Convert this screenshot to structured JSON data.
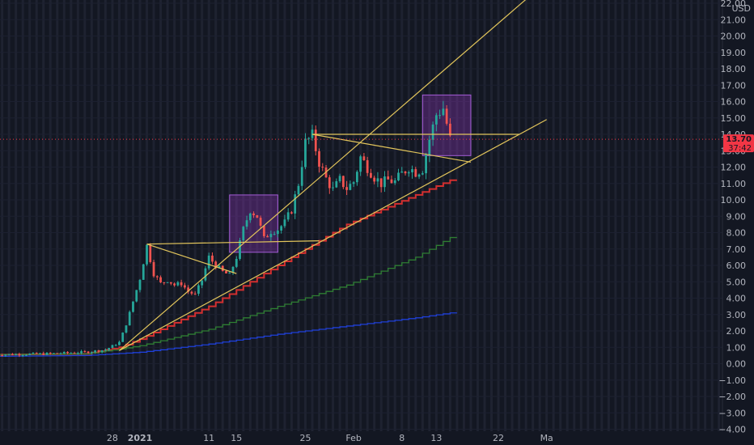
{
  "chart_data": {
    "type": "candlestick",
    "currency": "USD",
    "y_ticks": [
      -4,
      -3,
      -2,
      -1,
      0,
      1,
      2,
      3,
      4,
      5,
      6,
      7,
      8,
      9,
      10,
      11,
      12,
      13,
      14,
      15,
      16,
      17,
      18,
      19,
      20,
      21,
      22
    ],
    "y_tick_labels": [
      "−4.00",
      "−3.00",
      "−2.00",
      "−1.00",
      "0.00",
      "1.00",
      "2.00",
      "3.00",
      "4.00",
      "5.00",
      "6.00",
      "7.00",
      "8.00",
      "9.00",
      "10.00",
      "11.00",
      "12.00",
      "13.00",
      "14.00",
      "15.00",
      "16.00",
      "17.00",
      "18.00",
      "19.00",
      "20.00",
      "21.00",
      "22.00"
    ],
    "ylim": [
      -4,
      22
    ],
    "x_ticks": [
      {
        "label": "28",
        "day": -4
      },
      {
        "label": "2021",
        "day": 0
      },
      {
        "label": "11",
        "day": 10
      },
      {
        "label": "15",
        "day": 14
      },
      {
        "label": "25",
        "day": 24
      },
      {
        "label": "Feb",
        "day": 31
      },
      {
        "label": "8",
        "day": 38
      },
      {
        "label": "13",
        "day": 43
      },
      {
        "label": "22",
        "day": 52
      },
      {
        "label": "Ma",
        "day": 59
      }
    ],
    "last_price": "13.70",
    "countdown": "37:42",
    "price_path": [
      [
        -21,
        0.55
      ],
      [
        -14,
        0.6
      ],
      [
        -8,
        0.7
      ],
      [
        -5,
        0.85
      ],
      [
        -3,
        1.3
      ],
      [
        -2,
        2.4
      ],
      [
        -1,
        3.8
      ],
      [
        0,
        5.2
      ],
      [
        1,
        7.2
      ],
      [
        2,
        5.5
      ],
      [
        3,
        4.9
      ],
      [
        4,
        5.1
      ],
      [
        5,
        4.8
      ],
      [
        6,
        4.9
      ],
      [
        7,
        4.4
      ],
      [
        8,
        4.2
      ],
      [
        9,
        5.1
      ],
      [
        10,
        6.5
      ],
      [
        11,
        6.0
      ],
      [
        12,
        5.6
      ],
      [
        13,
        5.4
      ],
      [
        14,
        6.5
      ],
      [
        15,
        8.2
      ],
      [
        16,
        9.4
      ],
      [
        17,
        9.0
      ],
      [
        18,
        7.6
      ],
      [
        19,
        8.1
      ],
      [
        20,
        8.2
      ],
      [
        21,
        8.6
      ],
      [
        22,
        9.4
      ],
      [
        23,
        11.0
      ],
      [
        24,
        13.5
      ],
      [
        25,
        13.9
      ],
      [
        26,
        12.3
      ],
      [
        27,
        11.3
      ],
      [
        28,
        10.6
      ],
      [
        29,
        11.2
      ],
      [
        30,
        10.7
      ],
      [
        31,
        11.1
      ],
      [
        32,
        12.6
      ],
      [
        33,
        12.0
      ],
      [
        34,
        11.4
      ],
      [
        35,
        11.0
      ],
      [
        36,
        11.2
      ],
      [
        37,
        11.1
      ],
      [
        38,
        11.6
      ],
      [
        39,
        12.0
      ],
      [
        40,
        11.7
      ],
      [
        41,
        11.9
      ],
      [
        42,
        13.7
      ],
      [
        43,
        15.2
      ],
      [
        44,
        15.6
      ],
      [
        45,
        13.7
      ]
    ],
    "indicators": [
      {
        "name": "",
        "color": "#d32f2f",
        "points": [
          [
            -21,
            0.55
          ],
          [
            -8,
            0.6
          ],
          [
            -3,
            1.0
          ],
          [
            0,
            1.5
          ],
          [
            10,
            3.5
          ],
          [
            20,
            6.0
          ],
          [
            30,
            8.5
          ],
          [
            40,
            10.3
          ],
          [
            45,
            11.2
          ]
        ]
      },
      {
        "name": "",
        "color": "#2e7d32",
        "points": [
          [
            -21,
            0.55
          ],
          [
            -8,
            0.6
          ],
          [
            -3,
            0.9
          ],
          [
            0,
            1.1
          ],
          [
            10,
            2.1
          ],
          [
            20,
            3.5
          ],
          [
            30,
            4.8
          ],
          [
            40,
            6.5
          ],
          [
            45,
            7.7
          ]
        ]
      },
      {
        "name": "",
        "color": "#1e3fd8",
        "points": [
          [
            -21,
            0.45
          ],
          [
            -8,
            0.5
          ],
          [
            0,
            0.7
          ],
          [
            10,
            1.2
          ],
          [
            20,
            1.8
          ],
          [
            30,
            2.3
          ],
          [
            40,
            2.8
          ],
          [
            45,
            3.1
          ]
        ]
      }
    ],
    "trendlines": [
      [
        [
          -3,
          0.8
        ],
        [
          57,
          22.6
        ]
      ],
      [
        [
          -3,
          0.8
        ],
        [
          59,
          14.9
        ]
      ],
      [
        [
          1,
          7.3
        ],
        [
          26,
          7.5
        ]
      ],
      [
        [
          1,
          7.3
        ],
        [
          14,
          5.5
        ]
      ],
      [
        [
          25,
          14.0
        ],
        [
          55,
          14.0
        ]
      ],
      [
        [
          25,
          14.0
        ],
        [
          48,
          12.3
        ]
      ]
    ],
    "boxes": [
      {
        "day_from": 13,
        "day_to": 20,
        "price_from": 6.8,
        "price_to": 10.3
      },
      {
        "day_from": 41,
        "day_to": 48,
        "price_from": 12.7,
        "price_to": 16.4
      }
    ]
  }
}
